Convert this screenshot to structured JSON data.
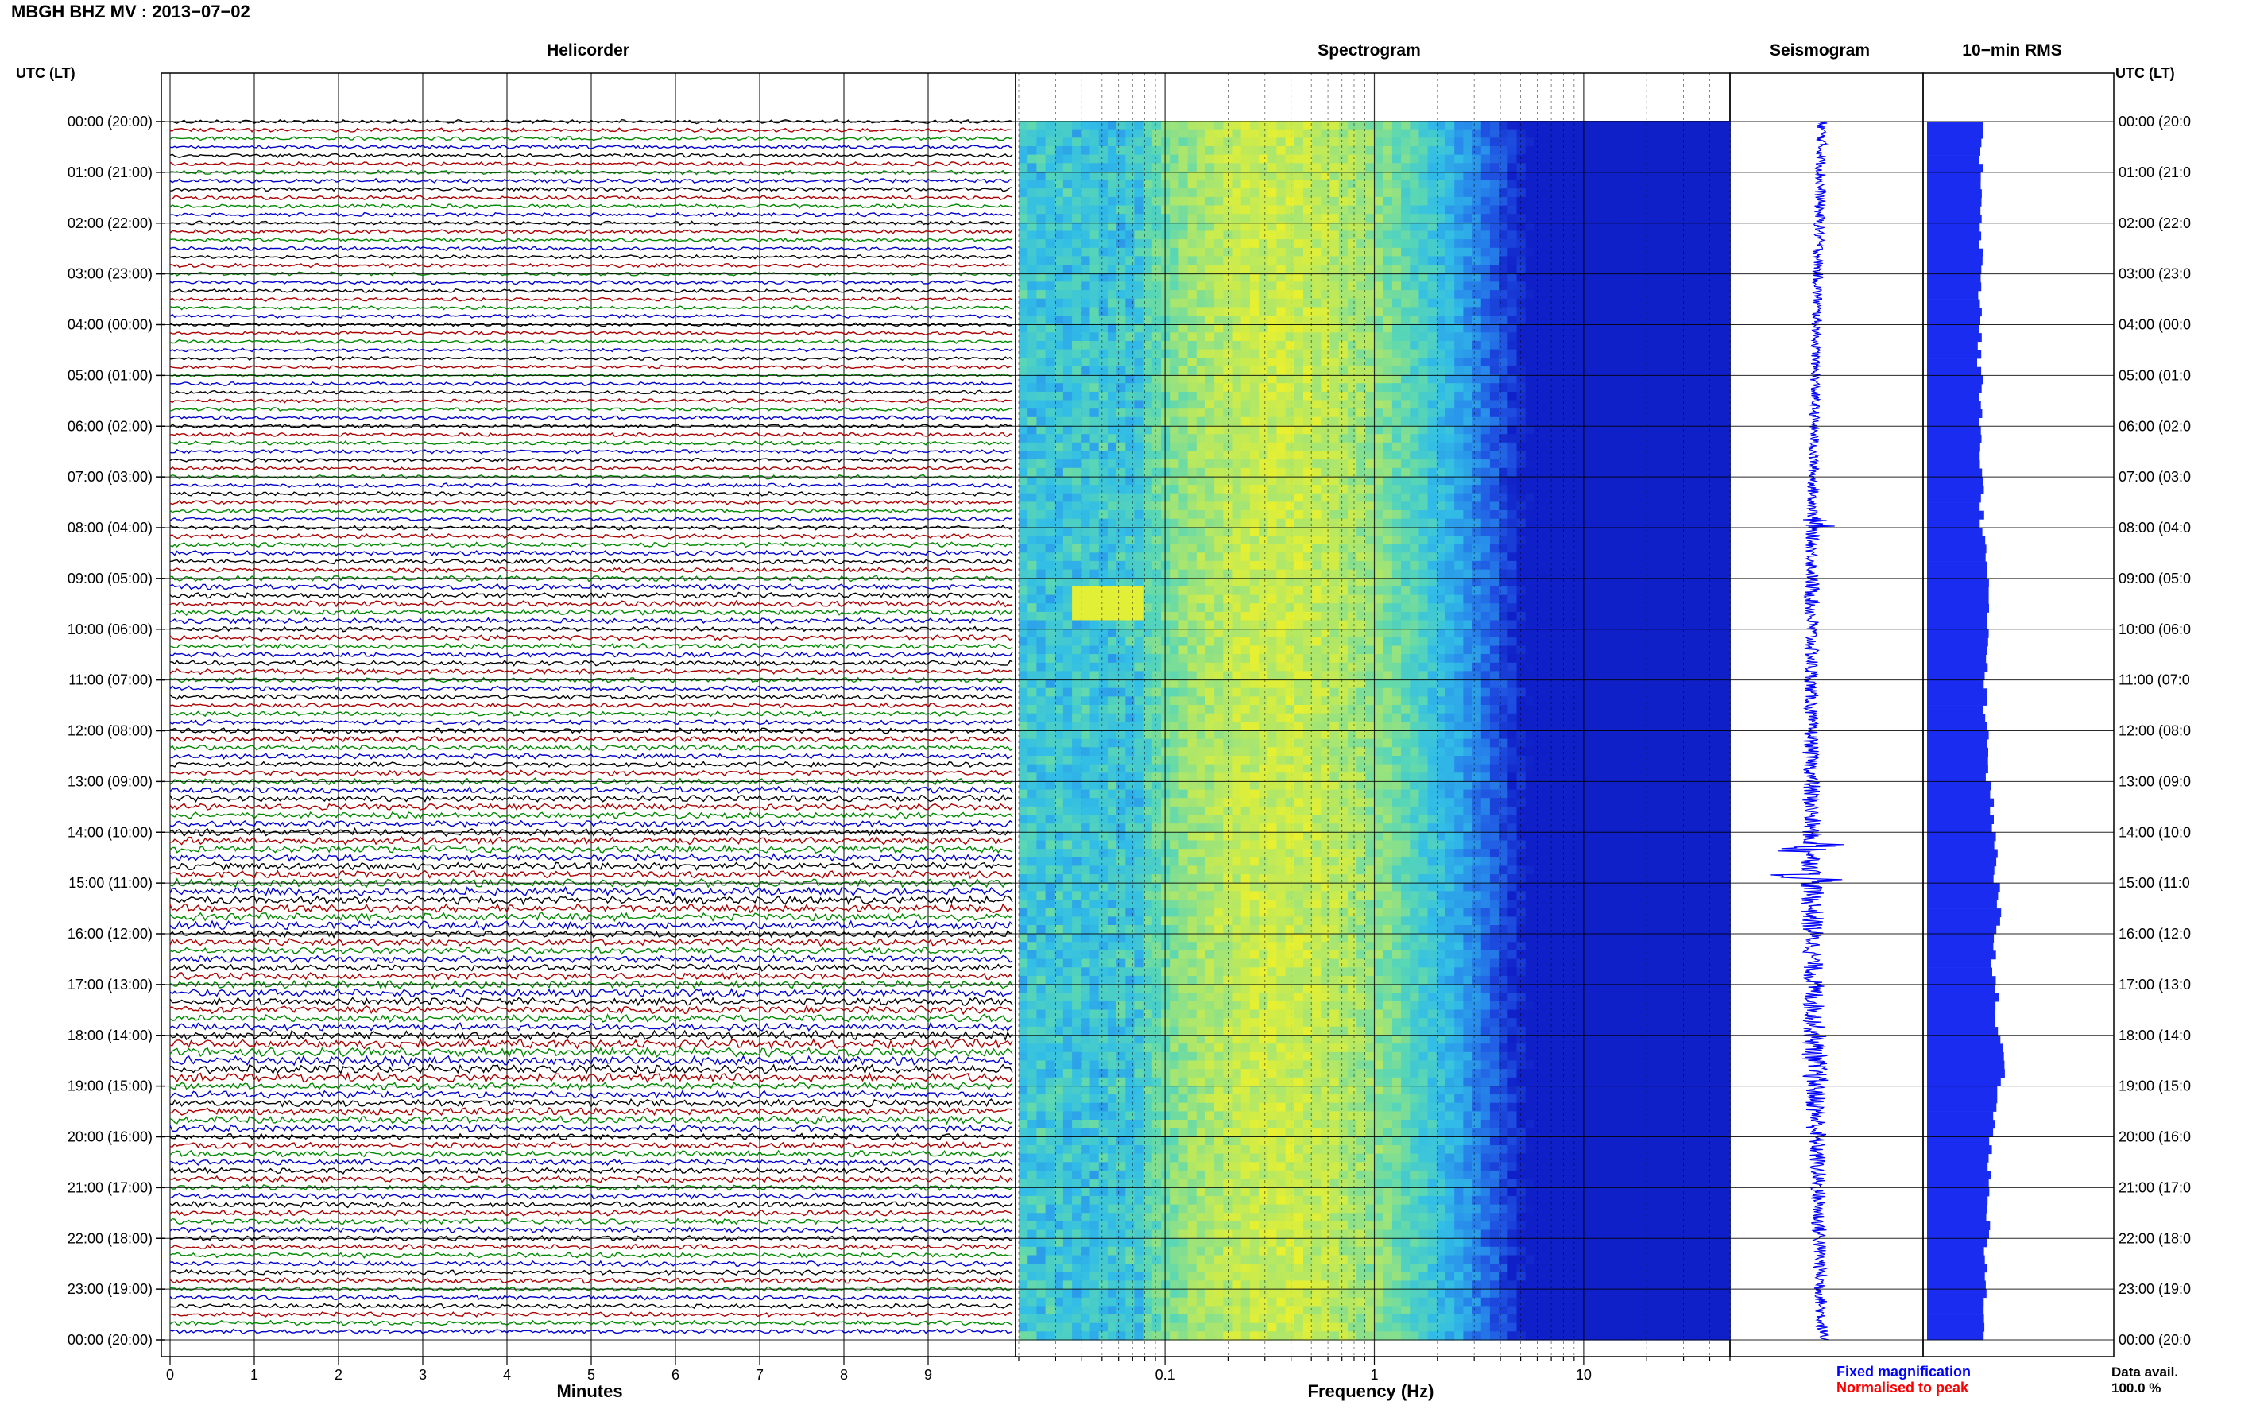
{
  "header": {
    "title": "MBGH BHZ MV : 2013−07−02"
  },
  "panels": {
    "helicorder": "Helicorder",
    "spectrogram": "Spectrogram",
    "seismogram": "Seismogram",
    "rms": "10−min RMS"
  },
  "axes": {
    "utc_left": "UTC (LT)",
    "utc_right": "UTC (LT)",
    "minutes_label": "Minutes",
    "frequency_label": "Frequency (Hz)"
  },
  "hour_labels": [
    "00:00 (20:00)",
    "01:00 (21:00)",
    "02:00 (22:00)",
    "03:00 (23:00)",
    "04:00 (00:00)",
    "05:00 (01:00)",
    "06:00 (02:00)",
    "07:00 (03:00)",
    "08:00 (04:00)",
    "09:00 (05:00)",
    "10:00 (06:00)",
    "11:00 (07:00)",
    "12:00 (08:00)",
    "13:00 (09:00)",
    "14:00 (10:00)",
    "15:00 (11:00)",
    "16:00 (12:00)",
    "17:00 (13:00)",
    "18:00 (14:00)",
    "19:00 (15:00)",
    "20:00 (16:00)",
    "21:00 (17:00)",
    "22:00 (18:00)",
    "23:00 (19:00)",
    "00:00 (20:00)"
  ],
  "hour_labels_right": [
    "00:00 (20:0",
    "01:00 (21:0",
    "02:00 (22:0",
    "03:00 (23:0",
    "04:00 (00:0",
    "05:00 (01:0",
    "06:00 (02:0",
    "07:00 (03:0",
    "08:00 (04:0",
    "09:00 (05:0",
    "10:00 (06:0",
    "11:00 (07:0",
    "12:00 (08:0",
    "13:00 (09:0",
    "14:00 (10:0",
    "15:00 (11:0",
    "16:00 (12:0",
    "17:00 (13:0",
    "18:00 (14:0",
    "19:00 (15:0",
    "20:00 (16:0",
    "21:00 (17:0",
    "22:00 (18:0",
    "23:00 (19:0",
    "00:00 (20:0"
  ],
  "legend": {
    "fixed": "Fixed magnification",
    "normalised": "Normalised to peak"
  },
  "data_avail": {
    "label": "Data avail.",
    "value": "100.0 %"
  },
  "colors": {
    "trace_cycle": [
      "#000000",
      "#aa0000",
      "#008800",
      "#0000cc"
    ],
    "seismogram": "#0000ff",
    "rms_bar": "#1a2cf0",
    "legend_fixed": "#0000ff",
    "legend_normalised": "#ff0000",
    "spectrogram_low": "#1020c0",
    "spectrogram_high": "#e8f030"
  },
  "chart_data": [
    {
      "type": "line",
      "title": "Helicorder",
      "xlabel": "Minutes",
      "x_ticks": [
        "0",
        "1",
        "2",
        "3",
        "4",
        "5",
        "6",
        "7",
        "8",
        "9"
      ],
      "xlim": [
        0,
        10
      ],
      "row_minutes": 10,
      "rows": 144,
      "ylabel": "UTC (LT)"
    },
    {
      "type": "heatmap",
      "title": "Spectrogram",
      "xlabel": "Frequency (Hz)",
      "x_scale": "log",
      "x_ticks": [
        "0.1",
        "1",
        "10"
      ],
      "xlim": [
        0.02,
        50
      ],
      "rows_per_hour": 6
    },
    {
      "type": "line",
      "title": "Seismogram",
      "orientation": "vertical",
      "events_hours": [
        7.9,
        14.3,
        14.9
      ]
    },
    {
      "type": "bar",
      "title": "10−min RMS",
      "orientation": "horizontal",
      "hourly_relative_rms": [
        0.62,
        0.63,
        0.62,
        0.61,
        0.6,
        0.61,
        0.62,
        0.63,
        0.66,
        0.7,
        0.68,
        0.66,
        0.69,
        0.74,
        0.78,
        0.82,
        0.76,
        0.8,
        0.86,
        0.78,
        0.72,
        0.7,
        0.68,
        0.65
      ]
    }
  ]
}
